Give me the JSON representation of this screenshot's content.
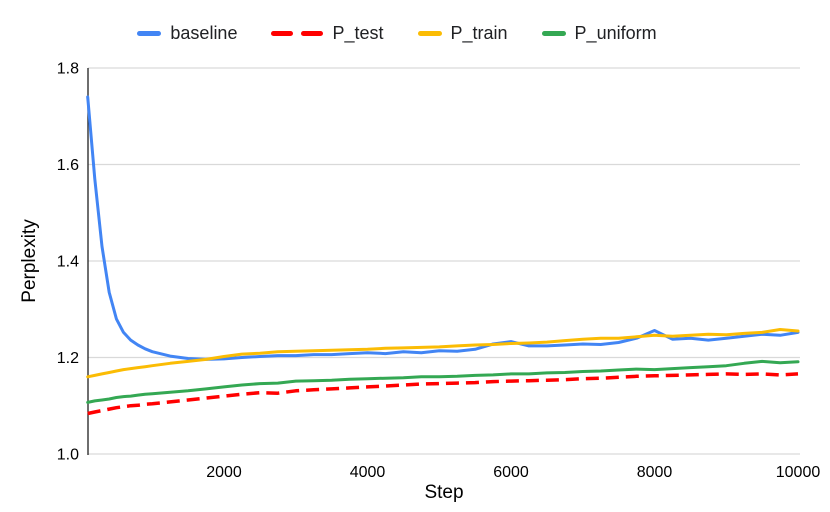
{
  "chart_data": {
    "type": "line",
    "xlabel": "Step",
    "ylabel": "Perplexity",
    "xlim": [
      0,
      10000
    ],
    "ylim": [
      1.0,
      1.8
    ],
    "x_ticks": [
      2000,
      4000,
      6000,
      8000,
      10000
    ],
    "y_ticks": [
      1.0,
      1.2,
      1.4,
      1.6,
      1.8
    ],
    "grid": "horizontal",
    "legend_position": "top-center",
    "background_color": "#ffffff",
    "gridline_color": "#d9d9d9",
    "axis_line_color": "#212121",
    "label_color": "#000000",
    "x": [
      100,
      200,
      300,
      400,
      500,
      600,
      700,
      800,
      900,
      1000,
      1250,
      1500,
      1750,
      2000,
      2250,
      2500,
      2750,
      3000,
      3250,
      3500,
      3750,
      4000,
      4250,
      4500,
      4750,
      5000,
      5250,
      5500,
      5750,
      6000,
      6250,
      6500,
      6750,
      7000,
      7250,
      7500,
      7750,
      8000,
      8250,
      8500,
      8750,
      9000,
      9250,
      9500,
      9750,
      10000
    ],
    "series": [
      {
        "name": "baseline",
        "color": "#4285F4",
        "style": "solid",
        "values": [
          1.74,
          1.57,
          1.43,
          1.335,
          1.28,
          1.252,
          1.236,
          1.226,
          1.218,
          1.212,
          1.203,
          1.198,
          1.196,
          1.197,
          1.2,
          1.202,
          1.204,
          1.204,
          1.206,
          1.206,
          1.208,
          1.21,
          1.208,
          1.212,
          1.21,
          1.214,
          1.213,
          1.217,
          1.228,
          1.233,
          1.224,
          1.224,
          1.226,
          1.228,
          1.227,
          1.231,
          1.24,
          1.256,
          1.238,
          1.24,
          1.236,
          1.24,
          1.244,
          1.248,
          1.246,
          1.252
        ]
      },
      {
        "name": "P_test",
        "color": "#FF0000",
        "style": "dashed",
        "values": [
          1.084,
          1.087,
          1.09,
          1.093,
          1.096,
          1.098,
          1.1,
          1.101,
          1.103,
          1.104,
          1.108,
          1.112,
          1.116,
          1.12,
          1.124,
          1.127,
          1.126,
          1.131,
          1.133,
          1.135,
          1.137,
          1.139,
          1.141,
          1.143,
          1.145,
          1.146,
          1.147,
          1.148,
          1.15,
          1.151,
          1.152,
          1.153,
          1.154,
          1.156,
          1.157,
          1.159,
          1.161,
          1.162,
          1.163,
          1.164,
          1.165,
          1.166,
          1.165,
          1.166,
          1.164,
          1.166
        ]
      },
      {
        "name": "P_train",
        "color": "#FBBC04",
        "style": "solid",
        "values": [
          1.16,
          1.163,
          1.166,
          1.169,
          1.172,
          1.175,
          1.177,
          1.179,
          1.181,
          1.183,
          1.188,
          1.192,
          1.196,
          1.202,
          1.207,
          1.209,
          1.212,
          1.213,
          1.214,
          1.215,
          1.216,
          1.217,
          1.219,
          1.22,
          1.221,
          1.222,
          1.224,
          1.226,
          1.227,
          1.229,
          1.23,
          1.232,
          1.235,
          1.238,
          1.24,
          1.24,
          1.243,
          1.246,
          1.244,
          1.246,
          1.248,
          1.247,
          1.25,
          1.252,
          1.258,
          1.255
        ]
      },
      {
        "name": "P_uniform",
        "color": "#34A853",
        "style": "solid",
        "values": [
          1.107,
          1.11,
          1.112,
          1.114,
          1.117,
          1.119,
          1.12,
          1.122,
          1.124,
          1.125,
          1.128,
          1.131,
          1.135,
          1.139,
          1.143,
          1.146,
          1.147,
          1.151,
          1.152,
          1.153,
          1.155,
          1.156,
          1.157,
          1.158,
          1.16,
          1.16,
          1.161,
          1.163,
          1.164,
          1.166,
          1.166,
          1.168,
          1.169,
          1.171,
          1.172,
          1.174,
          1.176,
          1.175,
          1.177,
          1.179,
          1.181,
          1.183,
          1.188,
          1.192,
          1.189,
          1.191
        ]
      }
    ]
  }
}
